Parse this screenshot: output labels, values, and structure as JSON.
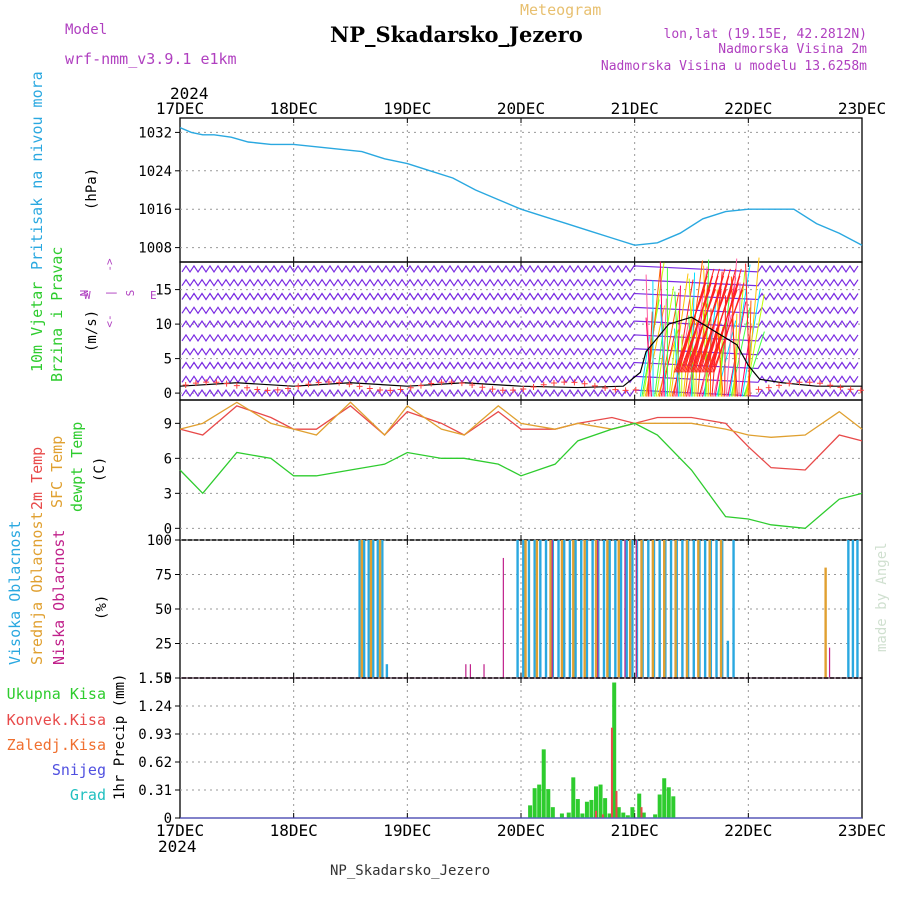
{
  "header": {
    "model_label": "Model",
    "model_name": "wrf-nmm_v3.9.1 e1km",
    "meteogram": "Meteogram",
    "station": "NP_Skadarsko_Jezero",
    "lonlat": "lon,lat (19.15E, 42.2812N)",
    "altitude": "Nadmorska Visina 2m",
    "model_altitude": "Nadmorska Visina u modelu 13.6258m",
    "footer_station": "NP_Skadarsko_Jezero",
    "credit": "made by Angel"
  },
  "time_axis": {
    "year_label": "2024",
    "ticks": [
      "17DEC",
      "18DEC",
      "19DEC",
      "20DEC",
      "21DEC",
      "22DEC",
      "23DEC"
    ]
  },
  "colors": {
    "pressure": "#2aa8e0",
    "temp2m": "#e84a4a",
    "sfc_temp": "#e0a030",
    "dewpoint": "#2ecc2e",
    "high_cloud": "#2aa8e0",
    "mid_cloud": "#e0a030",
    "low_cloud": "#c0208a",
    "precip_total": "#2ecc2e",
    "precip_conv": "#e84a4a",
    "purple_label": "#b040c0",
    "mountain_purple": "#8a2be2"
  },
  "chart_data": [
    {
      "type": "line",
      "name": "pressure",
      "ylabels": [
        "Pritisak na nivou mora"
      ],
      "unit": "(hPa)",
      "yticks": [
        "1032",
        "1024",
        "1016",
        "1008"
      ],
      "ylim": [
        1005,
        1035
      ],
      "x_days": [
        0,
        0.1,
        0.2,
        0.3,
        0.45,
        0.6,
        0.8,
        1.0,
        1.2,
        1.4,
        1.6,
        1.8,
        2.0,
        2.2,
        2.4,
        2.6,
        2.8,
        3.0,
        3.2,
        3.4,
        3.6,
        3.8,
        4.0,
        4.2,
        4.4,
        4.6,
        4.8,
        5.0,
        5.2,
        5.4,
        5.6,
        5.8,
        6.0
      ],
      "values": [
        1033,
        1032,
        1031.5,
        1031.5,
        1031,
        1030,
        1029.5,
        1029.5,
        1029,
        1028.5,
        1028,
        1026.5,
        1025.5,
        1024,
        1022.5,
        1020,
        1018,
        1016,
        1014.5,
        1013,
        1011.5,
        1010,
        1008.5,
        1009,
        1011,
        1014,
        1015.5,
        1016,
        1016,
        1016,
        1013,
        1011,
        1008.5
      ]
    },
    {
      "type": "line",
      "name": "wind",
      "ylabels": [
        "10m Vjetar",
        "Brzina i Pravac"
      ],
      "unit": "(m/s)",
      "yticks": [
        "15",
        "10",
        "5",
        "0"
      ],
      "ylim": [
        -1,
        19
      ],
      "compass": "N W E S",
      "series": [
        {
          "name": "speed",
          "x_days": [
            0,
            0.5,
            1,
            1.5,
            2,
            2.5,
            3,
            3.5,
            3.9,
            4.05,
            4.1,
            4.3,
            4.5,
            4.7,
            4.9,
            5.0,
            5.1,
            5.3,
            5.6,
            6.0
          ],
          "values": [
            1,
            1.5,
            1,
            1.5,
            1,
            1.5,
            1,
            0.8,
            1,
            3,
            6,
            10,
            11,
            9,
            7,
            4,
            2,
            1.5,
            1,
            1
          ]
        }
      ]
    },
    {
      "type": "line",
      "name": "temperature",
      "ylabels": [
        "2m Temp",
        "SFC Temp",
        "dewpt Temp"
      ],
      "unit": "(C)",
      "yticks": [
        "9",
        "6",
        "3",
        "0"
      ],
      "ylim": [
        -1,
        11
      ],
      "x_days": [
        0,
        0.2,
        0.5,
        0.8,
        1.0,
        1.2,
        1.5,
        1.8,
        2.0,
        2.3,
        2.5,
        2.8,
        3.0,
        3.3,
        3.5,
        3.8,
        4.0,
        4.2,
        4.5,
        4.8,
        5.0,
        5.2,
        5.5,
        5.8,
        6.0
      ],
      "series": [
        {
          "name": "2m Temp",
          "values": [
            8.5,
            8,
            10.5,
            9.5,
            8.5,
            8.5,
            10.5,
            8,
            10,
            9,
            8,
            10,
            8.5,
            8.5,
            9,
            9.5,
            9,
            9.5,
            9.5,
            9,
            7,
            5.2,
            5,
            8,
            7.5
          ]
        },
        {
          "name": "SFC Temp",
          "values": [
            8.5,
            9,
            10.8,
            9,
            8.5,
            8,
            10.8,
            8,
            10.5,
            8.5,
            8,
            10.5,
            9,
            8.5,
            9,
            8.5,
            9,
            9,
            9,
            8.5,
            8,
            7.8,
            8,
            10,
            8.5
          ]
        },
        {
          "name": "dewpt Temp",
          "values": [
            5,
            3,
            6.5,
            6,
            4.5,
            4.5,
            5,
            5.5,
            6.5,
            6,
            6,
            5.5,
            4.5,
            5.5,
            7.5,
            8.5,
            9,
            8,
            5,
            1,
            0.8,
            0.3,
            0,
            2.5,
            3
          ]
        }
      ]
    },
    {
      "type": "bar",
      "name": "cloud",
      "ylabels": [
        "Visoka Oblacnost",
        "Srednja Oblacnost",
        "Niska Oblacnost"
      ],
      "unit": "(%)",
      "yticks": [
        "100",
        "75",
        "50",
        "25",
        "0"
      ],
      "ylim": [
        0,
        100
      ],
      "series": [
        {
          "name": "Visoka Oblacnost",
          "x_days": [
            1.58,
            1.62,
            1.66,
            1.7,
            1.74,
            1.78,
            1.82,
            2.97,
            3.02,
            3.07,
            3.12,
            3.17,
            3.22,
            3.28,
            3.33,
            3.38,
            3.43,
            3.48,
            3.53,
            3.58,
            3.63,
            3.68,
            3.73,
            3.78,
            3.83,
            3.88,
            3.93,
            3.98,
            4.02,
            4.07,
            4.12,
            4.17,
            4.22,
            4.27,
            4.32,
            4.37,
            4.42,
            4.47,
            4.52,
            4.57,
            4.62,
            4.67,
            4.72,
            4.77,
            4.82,
            4.87,
            5.88,
            5.92,
            5.96
          ],
          "values": [
            100,
            100,
            100,
            100,
            100,
            100,
            10,
            100,
            100,
            100,
            100,
            100,
            100,
            100,
            100,
            100,
            100,
            100,
            100,
            100,
            100,
            100,
            100,
            100,
            100,
            100,
            100,
            100,
            100,
            100,
            100,
            100,
            100,
            100,
            100,
            100,
            100,
            100,
            100,
            100,
            100,
            100,
            100,
            100,
            27,
            100,
            100,
            100,
            100
          ]
        },
        {
          "name": "Srednja Oblacnost",
          "x_days": [
            1.6,
            1.68,
            1.76,
            3.04,
            3.14,
            3.26,
            3.36,
            3.46,
            3.56,
            3.66,
            3.76,
            3.86,
            3.96,
            4.06,
            4.16,
            4.26,
            4.36,
            4.46,
            4.56,
            4.66,
            4.76,
            5.68
          ],
          "values": [
            100,
            100,
            100,
            100,
            100,
            100,
            100,
            100,
            100,
            100,
            100,
            100,
            100,
            100,
            100,
            100,
            100,
            100,
            100,
            100,
            100,
            80
          ]
        },
        {
          "name": "Niska Oblacnost",
          "x_days": [
            2.52,
            2.56,
            2.68,
            2.85,
            3.28,
            3.68,
            3.92,
            4.02,
            5.72
          ],
          "values": [
            10,
            10,
            10,
            87,
            100,
            100,
            100,
            100,
            22
          ]
        }
      ]
    },
    {
      "type": "bar",
      "name": "precip",
      "ylabels": [
        "Ukupna Kisa",
        "Konvek.Kisa",
        "Zaledj.Kisa",
        "Snijeg",
        "Grad"
      ],
      "unit": "1hr Precip (mm)",
      "yticks": [
        "1.55",
        "1.24",
        "0.93",
        "0.62",
        "0.31",
        "0"
      ],
      "ylim": [
        0,
        1.55
      ],
      "series": [
        {
          "name": "Ukupna Kisa",
          "x_days": [
            3.08,
            3.12,
            3.16,
            3.2,
            3.24,
            3.28,
            3.36,
            3.42,
            3.46,
            3.5,
            3.54,
            3.58,
            3.62,
            3.66,
            3.7,
            3.74,
            3.78,
            3.82,
            3.86,
            3.9,
            3.94,
            3.98,
            4.04,
            4.08,
            4.18,
            4.22,
            4.26,
            4.3,
            4.34
          ],
          "values": [
            0.14,
            0.33,
            0.37,
            0.76,
            0.32,
            0.12,
            0.05,
            0.06,
            0.45,
            0.21,
            0.05,
            0.18,
            0.2,
            0.35,
            0.37,
            0.22,
            0.05,
            1.5,
            0.12,
            0.06,
            0.03,
            0.12,
            0.27,
            0.06,
            0.04,
            0.26,
            0.44,
            0.34,
            0.24
          ]
        },
        {
          "name": "Konvek.Kisa",
          "x_days": [
            3.66,
            3.72,
            3.8,
            3.84,
            4.06
          ],
          "values": [
            0.08,
            0.04,
            1.0,
            0.3,
            0.12
          ]
        }
      ]
    }
  ]
}
